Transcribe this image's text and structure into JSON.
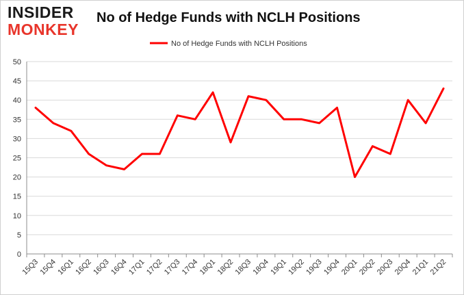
{
  "logo": {
    "line1": "INSIDER",
    "line2": "MONKEY"
  },
  "colors": {
    "series": "#ff0000",
    "grid": "#d9d9d9",
    "axis": "#8c8c8c",
    "text": "#333333",
    "logo_red": "#e8352b"
  },
  "chart_data": {
    "type": "line",
    "title": "No of Hedge Funds with NCLH Positions",
    "xlabel": "",
    "ylabel": "",
    "ylim": [
      0,
      50
    ],
    "yticks": [
      0,
      5,
      10,
      15,
      20,
      25,
      30,
      35,
      40,
      45,
      50
    ],
    "grid": true,
    "legend_position": "top-center",
    "categories": [
      "15Q3",
      "15Q4",
      "16Q1",
      "16Q2",
      "16Q3",
      "16Q4",
      "17Q1",
      "17Q2",
      "17Q3",
      "17Q4",
      "18Q1",
      "18Q2",
      "18Q3",
      "18Q4",
      "19Q1",
      "19Q2",
      "19Q3",
      "19Q4",
      "20Q1",
      "20Q2",
      "20Q3",
      "20Q4",
      "21Q1",
      "21Q2"
    ],
    "series": [
      {
        "name": "No of Hedge Funds with NCLH Positions",
        "color": "#ff0000",
        "values": [
          38,
          34,
          32,
          26,
          23,
          22,
          26,
          26,
          36,
          35,
          42,
          29,
          41,
          40,
          35,
          35,
          34,
          38,
          20,
          28,
          26,
          40,
          34,
          43
        ]
      }
    ]
  }
}
